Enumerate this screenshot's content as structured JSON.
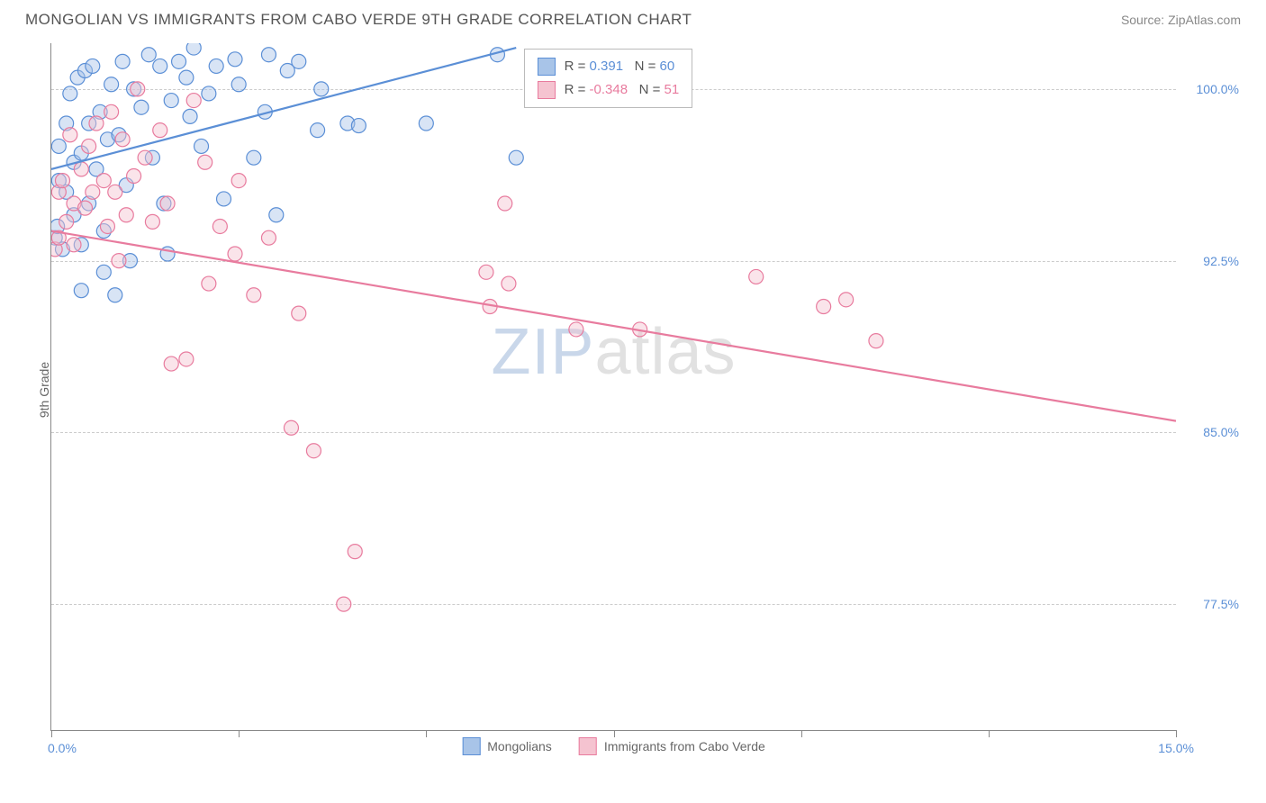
{
  "header": {
    "title": "MONGOLIAN VS IMMIGRANTS FROM CABO VERDE 9TH GRADE CORRELATION CHART",
    "source": "Source: ZipAtlas.com"
  },
  "watermark": {
    "part1": "ZIP",
    "part2": "atlas"
  },
  "y_axis": {
    "label": "9th Grade"
  },
  "chart": {
    "type": "scatter",
    "background_color": "#ffffff",
    "grid_color": "#cccccc",
    "axis_color": "#888888",
    "xlim": [
      0.0,
      15.0
    ],
    "ylim": [
      72.0,
      102.0
    ],
    "y_ticks": [
      {
        "value": 100.0,
        "label": "100.0%"
      },
      {
        "value": 92.5,
        "label": "92.5%"
      },
      {
        "value": 85.0,
        "label": "85.0%"
      },
      {
        "value": 77.5,
        "label": "77.5%"
      }
    ],
    "x_ticks": [
      0.0,
      2.5,
      5.0,
      7.5,
      10.0,
      12.5,
      15.0
    ],
    "x_range_labels": {
      "left": "0.0%",
      "right": "15.0%"
    },
    "marker_radius": 8,
    "marker_opacity": 0.45,
    "series": [
      {
        "name": "Mongolians",
        "color_fill": "#a8c4e8",
        "color_stroke": "#5b8fd6",
        "r_value": "0.391",
        "n_value": "60",
        "trend": {
          "x1": 0.0,
          "y1": 96.5,
          "x2": 6.2,
          "y2": 101.8
        },
        "points": [
          [
            0.05,
            93.5
          ],
          [
            0.08,
            94.0
          ],
          [
            0.1,
            96.0
          ],
          [
            0.1,
            97.5
          ],
          [
            0.15,
            93.0
          ],
          [
            0.2,
            95.5
          ],
          [
            0.2,
            98.5
          ],
          [
            0.25,
            99.8
          ],
          [
            0.3,
            96.8
          ],
          [
            0.3,
            94.5
          ],
          [
            0.35,
            100.5
          ],
          [
            0.4,
            97.2
          ],
          [
            0.4,
            93.2
          ],
          [
            0.45,
            100.8
          ],
          [
            0.5,
            98.5
          ],
          [
            0.5,
            95.0
          ],
          [
            0.55,
            101.0
          ],
          [
            0.6,
            96.5
          ],
          [
            0.65,
            99.0
          ],
          [
            0.7,
            92.0
          ],
          [
            0.75,
            97.8
          ],
          [
            0.8,
            100.2
          ],
          [
            0.85,
            91.0
          ],
          [
            0.9,
            98.0
          ],
          [
            0.95,
            101.2
          ],
          [
            1.0,
            95.8
          ],
          [
            1.05,
            92.5
          ],
          [
            1.1,
            100.0
          ],
          [
            1.2,
            99.2
          ],
          [
            1.3,
            101.5
          ],
          [
            1.35,
            97.0
          ],
          [
            1.45,
            101.0
          ],
          [
            1.5,
            95.0
          ],
          [
            1.6,
            99.5
          ],
          [
            1.7,
            101.2
          ],
          [
            1.8,
            100.5
          ],
          [
            1.85,
            98.8
          ],
          [
            1.9,
            101.8
          ],
          [
            2.0,
            97.5
          ],
          [
            2.1,
            99.8
          ],
          [
            2.2,
            101.0
          ],
          [
            2.3,
            95.2
          ],
          [
            2.45,
            101.3
          ],
          [
            2.5,
            100.2
          ],
          [
            2.7,
            97.0
          ],
          [
            2.85,
            99.0
          ],
          [
            2.9,
            101.5
          ],
          [
            3.0,
            94.5
          ],
          [
            3.15,
            100.8
          ],
          [
            3.3,
            101.2
          ],
          [
            3.55,
            98.2
          ],
          [
            3.6,
            100.0
          ],
          [
            3.95,
            98.5
          ],
          [
            4.1,
            98.4
          ],
          [
            5.0,
            98.5
          ],
          [
            5.95,
            101.5
          ],
          [
            6.2,
            97.0
          ],
          [
            0.4,
            91.2
          ],
          [
            0.7,
            93.8
          ],
          [
            1.55,
            92.8
          ]
        ]
      },
      {
        "name": "Immigrants from Cabo Verde",
        "color_fill": "#f5c3d0",
        "color_stroke": "#e87b9e",
        "r_value": "-0.348",
        "n_value": "51",
        "trend": {
          "x1": 0.0,
          "y1": 93.8,
          "x2": 15.0,
          "y2": 85.5
        },
        "points": [
          [
            0.05,
            93.0
          ],
          [
            0.1,
            95.5
          ],
          [
            0.1,
            93.5
          ],
          [
            0.15,
            96.0
          ],
          [
            0.2,
            94.2
          ],
          [
            0.25,
            98.0
          ],
          [
            0.3,
            95.0
          ],
          [
            0.3,
            93.2
          ],
          [
            0.4,
            96.5
          ],
          [
            0.45,
            94.8
          ],
          [
            0.5,
            97.5
          ],
          [
            0.55,
            95.5
          ],
          [
            0.6,
            98.5
          ],
          [
            0.7,
            96.0
          ],
          [
            0.75,
            94.0
          ],
          [
            0.8,
            99.0
          ],
          [
            0.85,
            95.5
          ],
          [
            0.9,
            92.5
          ],
          [
            0.95,
            97.8
          ],
          [
            1.0,
            94.5
          ],
          [
            1.1,
            96.2
          ],
          [
            1.15,
            100.0
          ],
          [
            1.25,
            97.0
          ],
          [
            1.35,
            94.2
          ],
          [
            1.45,
            98.2
          ],
          [
            1.55,
            95.0
          ],
          [
            1.6,
            88.0
          ],
          [
            1.8,
            88.2
          ],
          [
            1.9,
            99.5
          ],
          [
            2.05,
            96.8
          ],
          [
            2.1,
            91.5
          ],
          [
            2.25,
            94.0
          ],
          [
            2.45,
            92.8
          ],
          [
            2.5,
            96.0
          ],
          [
            2.7,
            91.0
          ],
          [
            2.9,
            93.5
          ],
          [
            3.2,
            85.2
          ],
          [
            3.3,
            90.2
          ],
          [
            3.5,
            84.2
          ],
          [
            3.9,
            77.5
          ],
          [
            4.05,
            79.8
          ],
          [
            5.85,
            90.5
          ],
          [
            5.8,
            92.0
          ],
          [
            6.05,
            95.0
          ],
          [
            6.1,
            91.5
          ],
          [
            7.0,
            89.5
          ],
          [
            7.85,
            89.5
          ],
          [
            9.4,
            91.8
          ],
          [
            10.3,
            90.5
          ],
          [
            11.0,
            89.0
          ],
          [
            10.6,
            90.8
          ]
        ]
      }
    ]
  },
  "bottom_legend": {
    "items": [
      {
        "label": "Mongolians",
        "fill": "#a8c4e8",
        "stroke": "#5b8fd6"
      },
      {
        "label": "Immigrants from Cabo Verde",
        "fill": "#f5c3d0",
        "stroke": "#e87b9e"
      }
    ]
  }
}
